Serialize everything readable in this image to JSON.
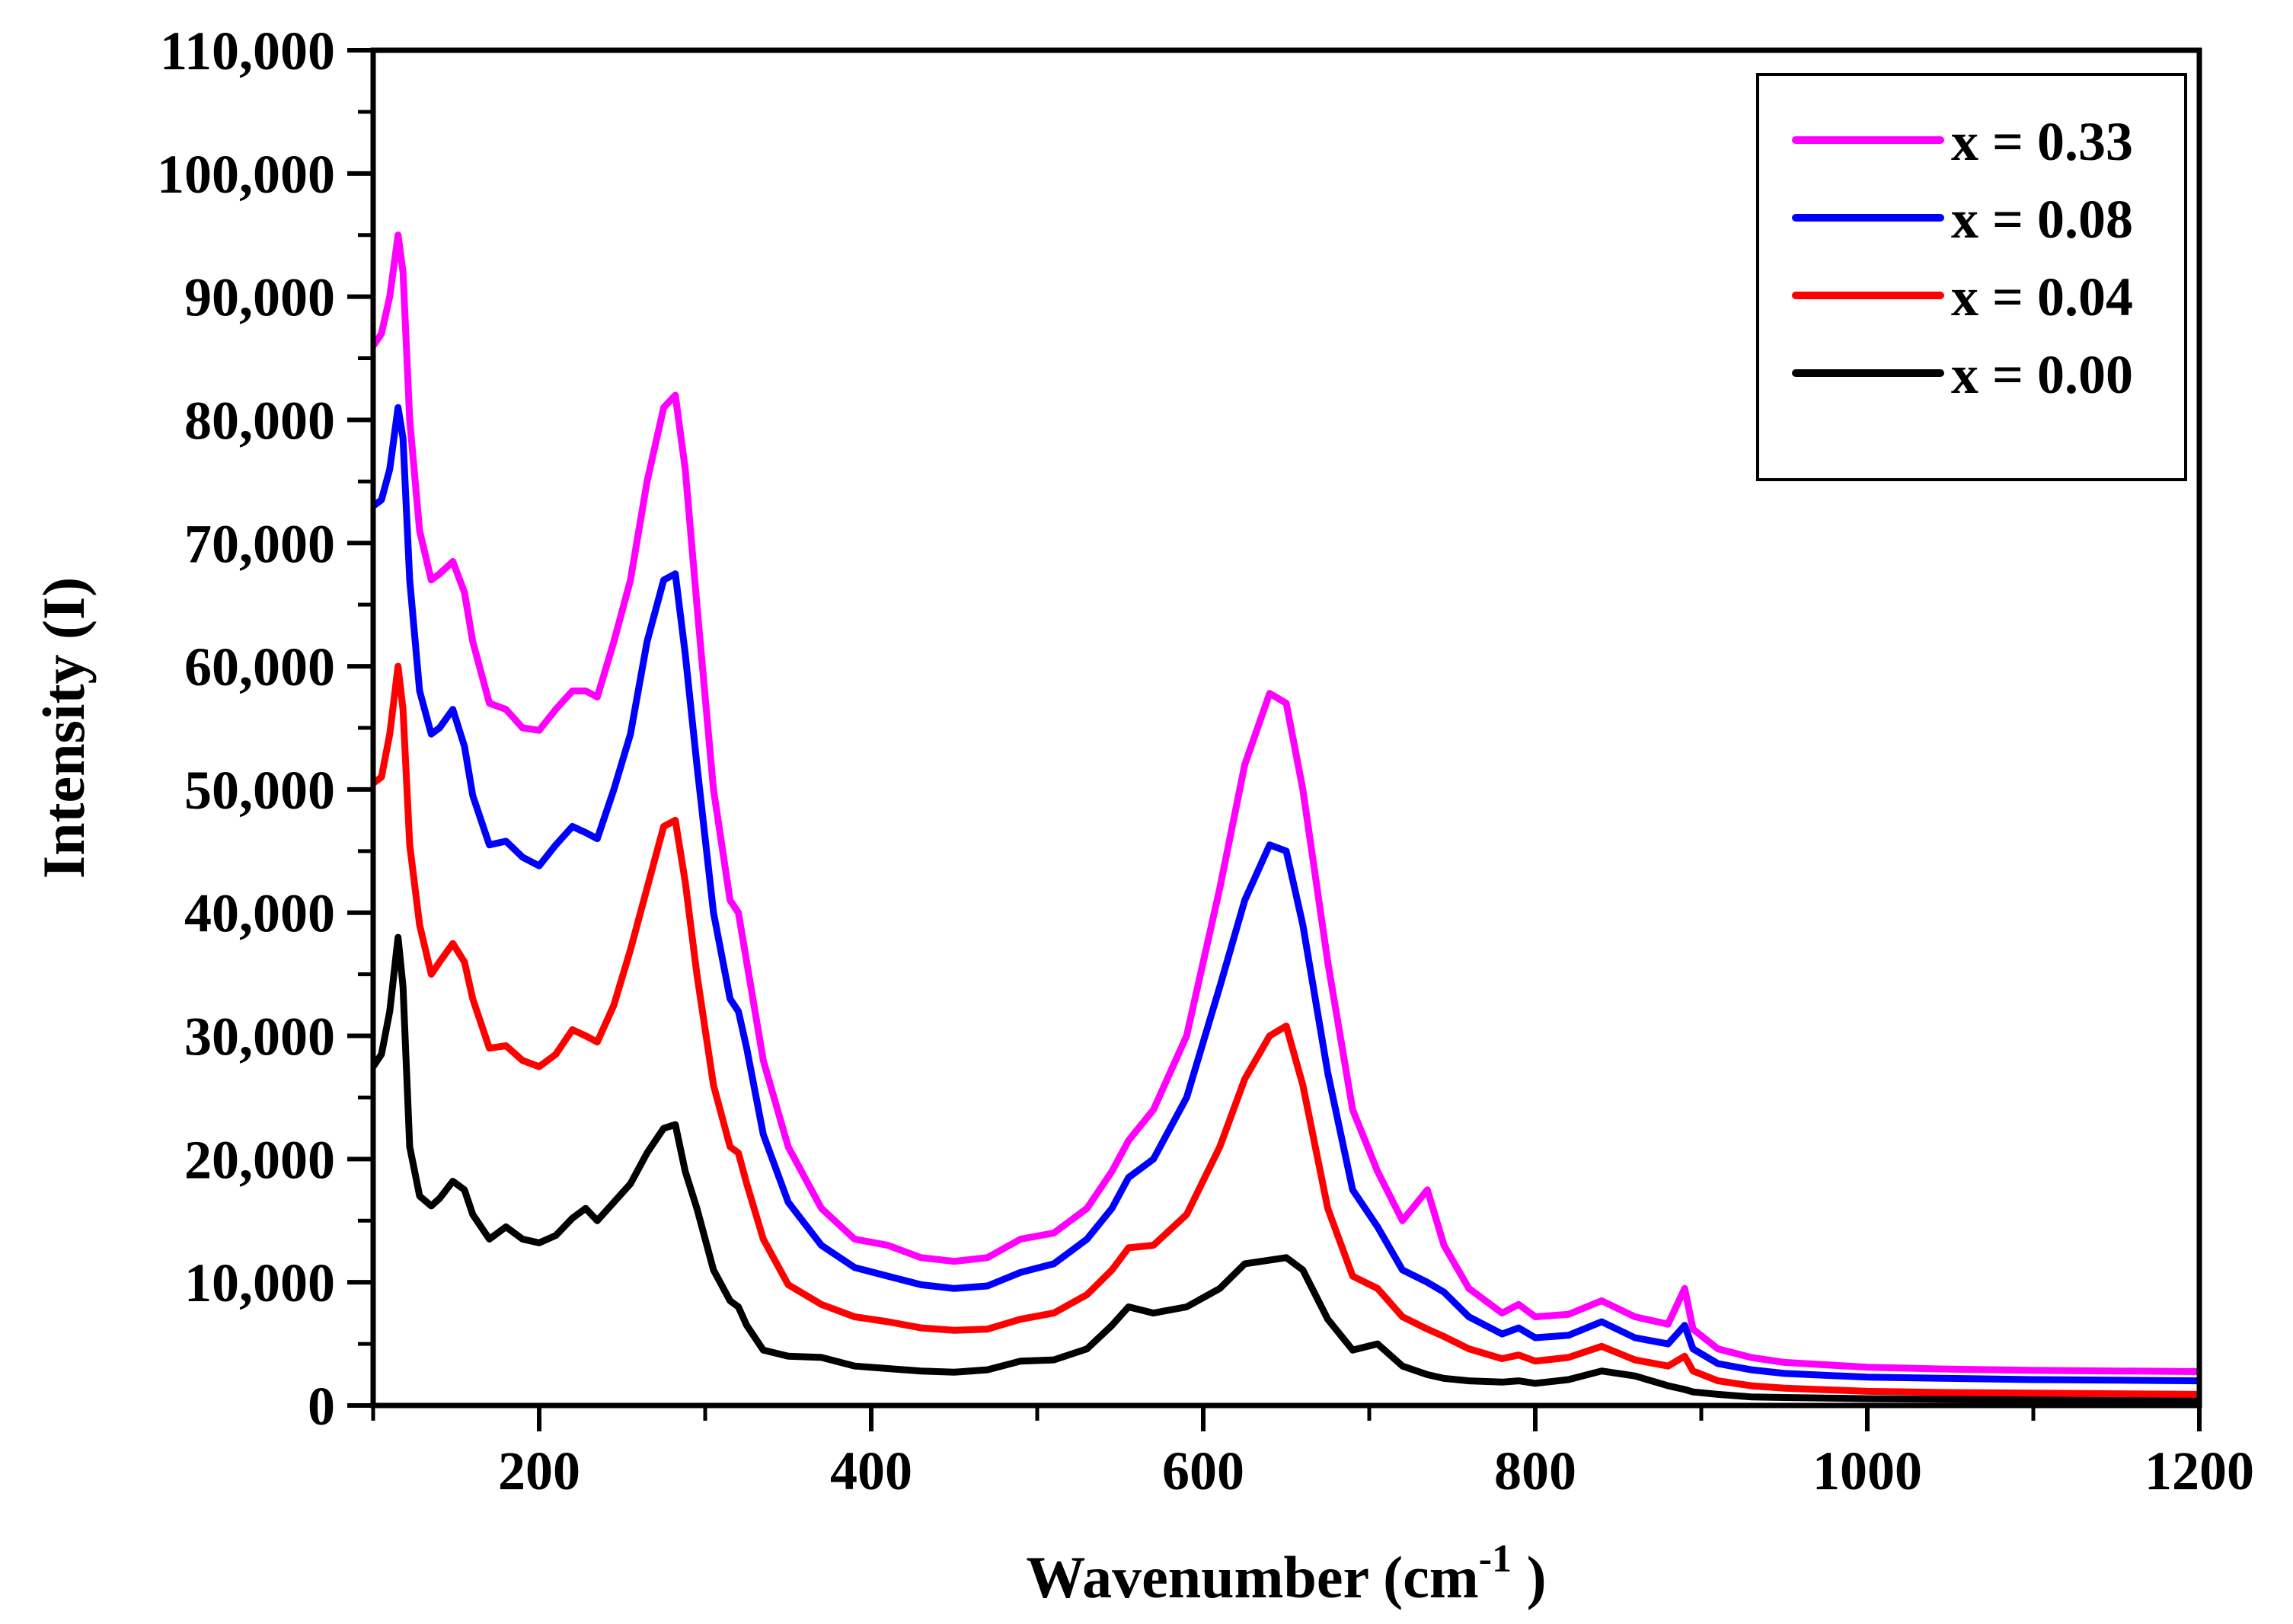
{
  "chart_data": {
    "type": "line",
    "title": "",
    "xlabel": "Wavenumber (cm",
    "xlabel_sup": "-1",
    "xlabel_end": " )",
    "ylabel": "Intensity (I)",
    "xlim": [
      100,
      1200
    ],
    "ylim": [
      0,
      110000
    ],
    "x_ticks": [
      200,
      400,
      600,
      800,
      1000,
      1200
    ],
    "x_tick_labels": [
      "200",
      "400",
      "600",
      "800",
      "1000",
      "1200"
    ],
    "y_ticks": [
      0,
      10000,
      20000,
      30000,
      40000,
      50000,
      60000,
      70000,
      80000,
      90000,
      100000,
      110000
    ],
    "y_tick_labels": [
      "0",
      "10,000",
      "20,000",
      "30,000",
      "40,000",
      "50,000",
      "60,000",
      "70,000",
      "80,000",
      "90,000",
      "100,000",
      "110,000"
    ],
    "grid": false,
    "legend_position": "top-right",
    "x": [
      100,
      105,
      110,
      115,
      118,
      122,
      128,
      135,
      140,
      148,
      155,
      160,
      170,
      180,
      190,
      200,
      210,
      220,
      228,
      235,
      245,
      255,
      265,
      275,
      282,
      288,
      295,
      305,
      315,
      320,
      325,
      335,
      350,
      370,
      390,
      410,
      430,
      450,
      470,
      490,
      510,
      530,
      545,
      555,
      570,
      590,
      610,
      625,
      640,
      650,
      660,
      675,
      690,
      705,
      720,
      735,
      745,
      760,
      780,
      790,
      800,
      820,
      840,
      860,
      880,
      890,
      895,
      910,
      930,
      950,
      1000,
      1050,
      1100,
      1150,
      1200
    ],
    "series": [
      {
        "name": "x = 0.33",
        "color": "#ff00ff",
        "values": [
          86000,
          87000,
          90000,
          95000,
          92000,
          80000,
          71000,
          67000,
          67500,
          68500,
          66000,
          62000,
          57000,
          56500,
          55000,
          54800,
          56500,
          58000,
          58000,
          57500,
          62000,
          67000,
          75000,
          81000,
          82000,
          76000,
          65000,
          50000,
          41000,
          40000,
          36000,
          28000,
          21000,
          16000,
          13500,
          13000,
          12000,
          11700,
          12000,
          13500,
          14000,
          16000,
          19000,
          21500,
          24000,
          30000,
          42000,
          52000,
          57800,
          57000,
          50000,
          36000,
          24000,
          19000,
          15000,
          17500,
          13000,
          9500,
          7500,
          8200,
          7200,
          7400,
          8500,
          7200,
          6600,
          9500,
          6200,
          4600,
          3900,
          3500,
          3100,
          2950,
          2850,
          2800,
          2750
        ]
      },
      {
        "name": "x = 0.08",
        "color": "#0000ff",
        "values": [
          73000,
          73500,
          76000,
          81000,
          78500,
          67000,
          58000,
          54500,
          55000,
          56500,
          53500,
          49500,
          45500,
          45800,
          44500,
          43800,
          45500,
          47000,
          46500,
          46000,
          50000,
          54500,
          62000,
          67000,
          67500,
          61000,
          52000,
          40000,
          33000,
          32000,
          29000,
          22000,
          16500,
          13000,
          11200,
          10500,
          9800,
          9500,
          9700,
          10800,
          11500,
          13500,
          16000,
          18500,
          20000,
          25000,
          34000,
          41000,
          45500,
          45000,
          39000,
          27000,
          17500,
          14500,
          11000,
          10000,
          9200,
          7200,
          5800,
          6300,
          5500,
          5700,
          6800,
          5500,
          5000,
          6500,
          4600,
          3400,
          2900,
          2600,
          2300,
          2200,
          2100,
          2050,
          2000
        ]
      },
      {
        "name": "x = 0.04",
        "color": "#ff0000",
        "values": [
          50500,
          51000,
          54500,
          60000,
          56500,
          45500,
          39000,
          35000,
          36000,
          37500,
          36000,
          33000,
          29000,
          29200,
          28000,
          27500,
          28500,
          30500,
          30000,
          29500,
          32500,
          37000,
          42000,
          47000,
          47500,
          42500,
          35000,
          26000,
          21000,
          20500,
          18000,
          13500,
          9800,
          8200,
          7200,
          6800,
          6300,
          6100,
          6200,
          7000,
          7500,
          9000,
          11000,
          12800,
          13000,
          15500,
          21000,
          26500,
          30000,
          30800,
          26000,
          16000,
          10500,
          9500,
          7200,
          6200,
          5600,
          4600,
          3800,
          4100,
          3600,
          3900,
          4800,
          3700,
          3200,
          4000,
          2800,
          2000,
          1600,
          1400,
          1150,
          1050,
          1000,
          950,
          900
        ]
      },
      {
        "name": "x = 0.00",
        "color": "#000000",
        "values": [
          27500,
          28500,
          32000,
          38000,
          34000,
          21000,
          17000,
          16200,
          16800,
          18200,
          17500,
          15500,
          13500,
          14500,
          13500,
          13200,
          13800,
          15200,
          16000,
          15000,
          16500,
          18000,
          20500,
          22500,
          22800,
          19000,
          16000,
          11000,
          8500,
          8000,
          6500,
          4500,
          4000,
          3900,
          3200,
          3000,
          2800,
          2700,
          2900,
          3600,
          3700,
          4600,
          6500,
          8000,
          7500,
          8000,
          9500,
          11500,
          11800,
          12000,
          11000,
          7000,
          4500,
          5000,
          3200,
          2500,
          2200,
          2000,
          1900,
          2000,
          1800,
          2100,
          2800,
          2400,
          1600,
          1300,
          1100,
          900,
          700,
          650,
          550,
          500,
          480,
          460,
          450
        ]
      }
    ]
  }
}
